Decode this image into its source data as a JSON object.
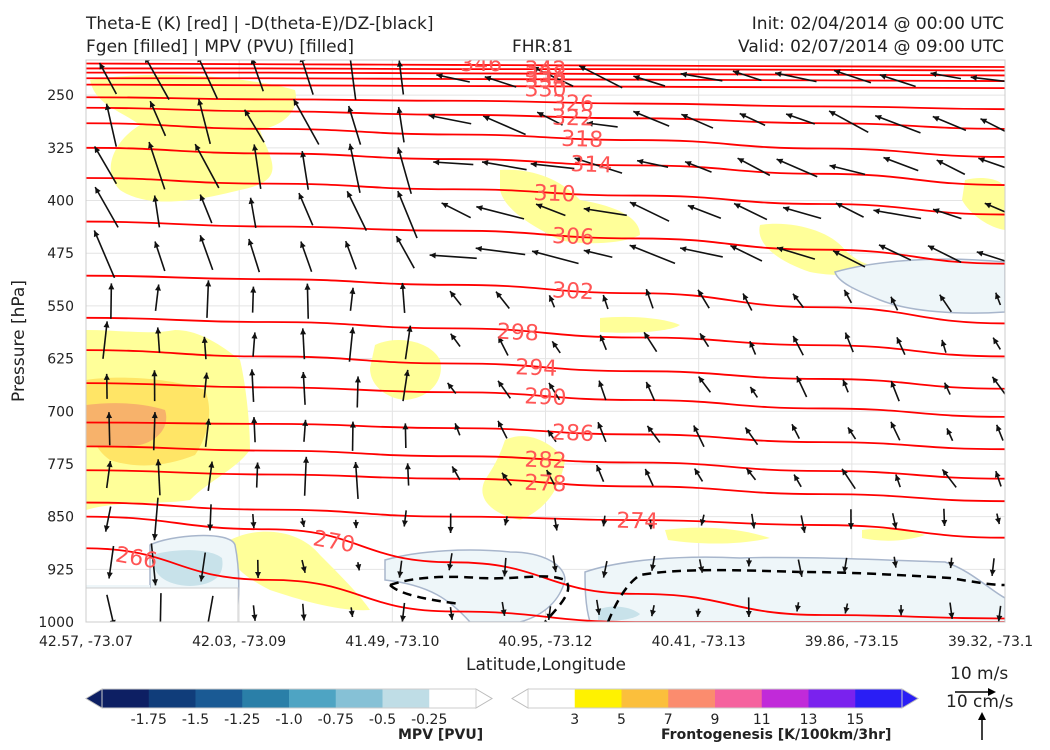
{
  "header": {
    "line1_left": "Theta-E (K) [red] | -D(theta-E)/DZ-[black]",
    "line2_left": "Fgen [filled] | MPV (PVU) [filled]",
    "fhr": "FHR:81",
    "init": "Init: 02/04/2014 @ 00:00 UTC",
    "valid": "Valid: 02/07/2014 @ 09:00 UTC"
  },
  "chart_data": {
    "type": "cross-section",
    "xlabel": "Latitude,Longitude",
    "ylabel": "Pressure [hPa]",
    "x_ticks": [
      "42.57, -73.07",
      "42.03, -73.09",
      "41.49, -73.10",
      "40.95, -73.12",
      "40.41, -73.13",
      "39.86, -73.15",
      "39.32, -73.1"
    ],
    "y_ticks": [
      250,
      325,
      400,
      475,
      550,
      625,
      700,
      775,
      850,
      925,
      1000
    ],
    "ylim": [
      1000,
      200
    ],
    "grid": true,
    "theta_e_contours": [
      {
        "label": "346",
        "value": 346,
        "p": [
          205,
          206,
          207,
          208,
          209,
          210
        ]
      },
      {
        "label": "342",
        "value": 342,
        "p": [
          212,
          212,
          213,
          213,
          214,
          215
        ]
      },
      {
        "label": "338",
        "value": 338,
        "p": [
          218,
          218,
          219,
          220,
          221,
          222
        ]
      },
      {
        "label": "334",
        "value": 334,
        "p": [
          226,
          226,
          227,
          228,
          229,
          230
        ]
      },
      {
        "label": "330",
        "value": 330,
        "p": [
          235,
          236,
          237,
          238,
          239,
          240
        ]
      },
      {
        "label": "326",
        "value": 326,
        "p": [
          253,
          256,
          258,
          262,
          266,
          270
        ]
      },
      {
        "label": "322",
        "value": 322,
        "p": [
          268,
          273,
          278,
          283,
          290,
          298
        ]
      },
      {
        "label": "318",
        "value": 318,
        "p": [
          290,
          298,
          306,
          314,
          326,
          338
        ]
      },
      {
        "label": "314",
        "value": 314,
        "p": [
          325,
          333,
          341,
          350,
          362,
          378
        ]
      },
      {
        "label": "310",
        "value": 310,
        "p": [
          368,
          376,
          384,
          393,
          405,
          420
        ]
      },
      {
        "label": "306",
        "value": 306,
        "p": [
          430,
          437,
          443,
          454,
          470,
          490
        ]
      },
      {
        "label": "302",
        "value": 302,
        "p": [
          507,
          512,
          520,
          532,
          552,
          575
        ]
      },
      {
        "label": "298",
        "value": 298,
        "p": [
          567,
          573,
          582,
          595,
          606,
          622
        ]
      },
      {
        "label": "294",
        "value": 294,
        "p": [
          613,
          622,
          632,
          643,
          654,
          668
        ]
      },
      {
        "label": "290",
        "value": 290,
        "p": [
          660,
          666,
          673,
          684,
          696,
          708
        ]
      },
      {
        "label": "286",
        "value": 286,
        "p": [
          716,
          718,
          724,
          733,
          744,
          754
        ]
      },
      {
        "label": "282",
        "value": 282,
        "p": [
          750,
          756,
          764,
          773,
          785,
          796
        ]
      },
      {
        "label": "278",
        "value": 278,
        "p": [
          784,
          790,
          796,
          807,
          818,
          828
        ]
      },
      {
        "label": "274",
        "value": 274,
        "p": [
          830,
          840,
          850,
          855,
          862,
          880
        ]
      },
      {
        "label": "270",
        "value": 270,
        "p": [
          850,
          868,
          915,
          960,
          990,
          995
        ]
      },
      {
        "label": "266",
        "value": 266,
        "p": [
          895,
          940,
          985,
          1000,
          1000,
          1000
        ]
      }
    ],
    "theta_e_labels_shown": [
      "346",
      "342",
      "338",
      "334",
      "330",
      "326",
      "322",
      "318",
      "314",
      "310",
      "306",
      "302",
      "298",
      "294",
      "290",
      "286",
      "282",
      "278",
      "274",
      "270",
      "266"
    ],
    "mpv_colorbar": {
      "label": "MPV [PVU]",
      "ticks": [
        "-1.75",
        "-1.5",
        "-1.25",
        "-1.0",
        "-0.75",
        "-0.5",
        "-0.25"
      ],
      "colors": [
        "#0d1f63",
        "#103d7a",
        "#1a5a94",
        "#2a7fa8",
        "#4ea4c3",
        "#86c1d6",
        "#bfdde6",
        "#ffffff"
      ]
    },
    "fgen_colorbar": {
      "label": "Frontogenesis [K/100km/3hr]",
      "ticks": [
        "3",
        "5",
        "7",
        "9",
        "11",
        "13",
        "15"
      ],
      "colors": [
        "#ffffff",
        "#fff200",
        "#fbbf3c",
        "#fb8c6e",
        "#f5629e",
        "#c12ad9",
        "#7a22ee",
        "#2a1ef5"
      ]
    },
    "reference_vectors": {
      "horizontal": "10 m/s",
      "vertical": "10 cm/s"
    },
    "colors": {
      "theta_e": "#ff0000",
      "theta_e_label": "#ff5555",
      "mpv_outline": "#a8b6cc",
      "fgen_light": "#ffff99",
      "fgen_mid": "#ffe566",
      "fgen_dark": "#f7b26b"
    }
  }
}
